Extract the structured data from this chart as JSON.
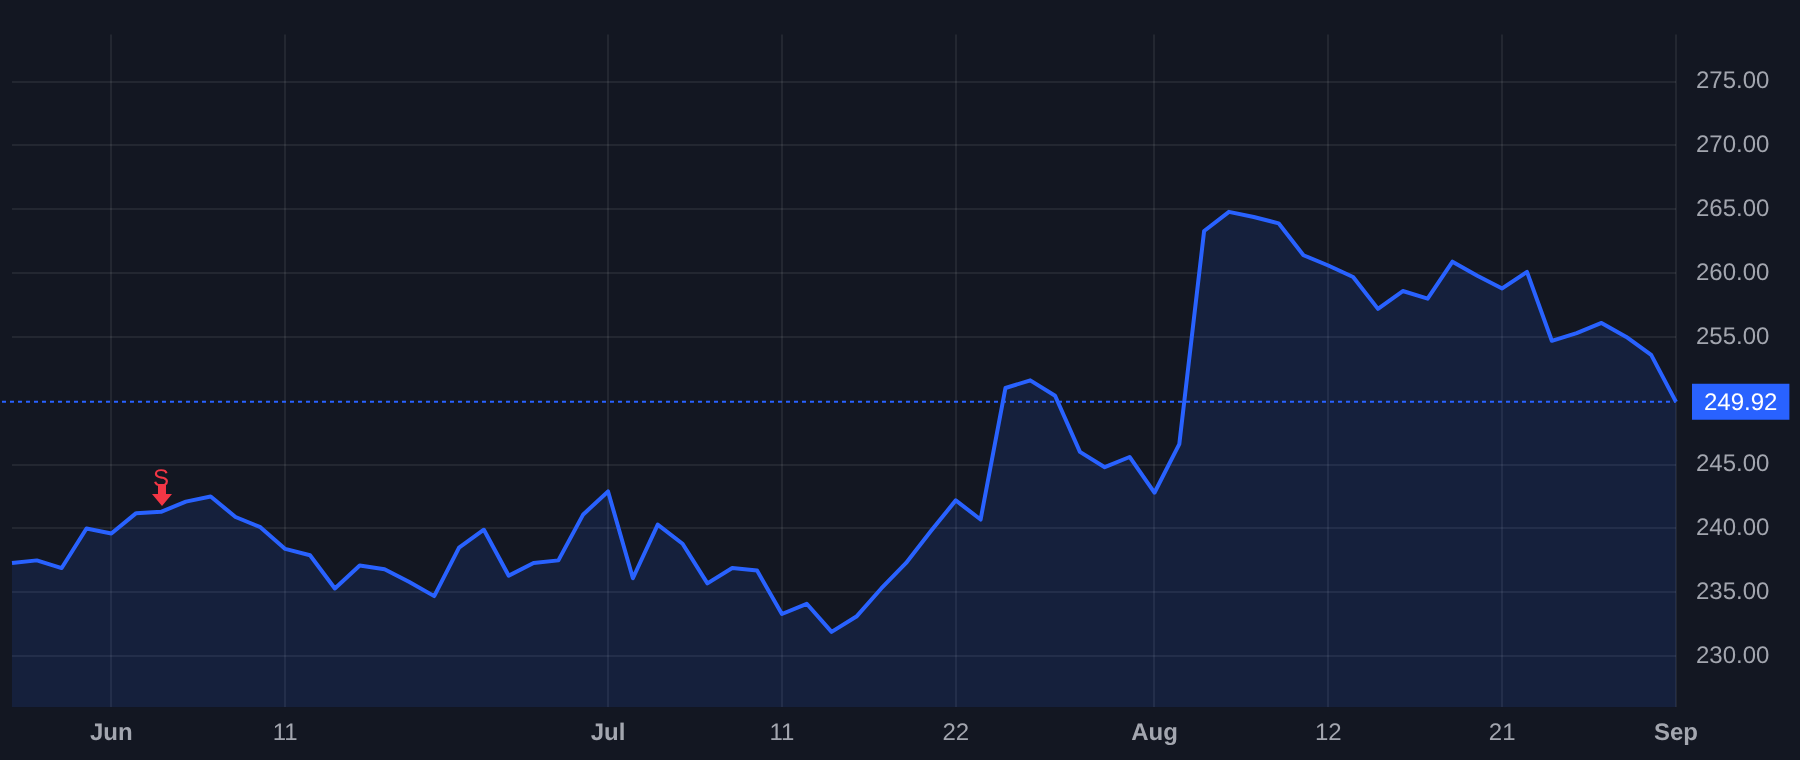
{
  "chart_data": {
    "type": "area",
    "categories": [
      null,
      null,
      null,
      null,
      "Jun",
      null,
      null,
      null,
      null,
      null,
      null,
      "11",
      null,
      null,
      null,
      null,
      null,
      null,
      null,
      null,
      null,
      null,
      null,
      null,
      "Jul",
      null,
      null,
      null,
      null,
      null,
      null,
      "11",
      null,
      null,
      null,
      null,
      null,
      null,
      "22",
      null,
      null,
      null,
      null,
      null,
      null,
      null,
      "Aug",
      null,
      null,
      null,
      null,
      null,
      null,
      "12",
      null,
      null,
      null,
      null,
      null,
      null,
      "21",
      null,
      null,
      null,
      null,
      null,
      null,
      "Sep"
    ],
    "series": [
      {
        "color": "#2962ff",
        "values": [
          237.3,
          237.5,
          236.9,
          240.0,
          239.6,
          241.2,
          241.3,
          242.1,
          242.5,
          240.9,
          240.1,
          238.4,
          237.9,
          235.3,
          237.1,
          236.8,
          235.8,
          234.7,
          238.5,
          239.9,
          236.3,
          237.3,
          237.5,
          241.1,
          242.9,
          236.1,
          240.3,
          238.8,
          235.7,
          236.9,
          236.7,
          233.3,
          234.1,
          231.9,
          233.1,
          235.3,
          237.3,
          239.8,
          242.2,
          240.7,
          251.0,
          251.6,
          250.4,
          246.0,
          244.8,
          245.6,
          242.8,
          246.6,
          263.3,
          264.8,
          264.4,
          263.9,
          261.4,
          260.6,
          259.7,
          257.2,
          258.6,
          258.0,
          260.9,
          259.8,
          258.8,
          260.1,
          254.7,
          255.3,
          256.1,
          255.0,
          253.6,
          249.92
        ]
      }
    ],
    "ylim": [
      226,
      278.7
    ],
    "yticks": [
      {
        "value": 230,
        "label": "230.00"
      },
      {
        "value": 235,
        "label": "235.00"
      },
      {
        "value": 240,
        "label": "240.00"
      },
      {
        "value": 245,
        "label": "245.00"
      },
      {
        "value": 255,
        "label": "255.00"
      },
      {
        "value": 260,
        "label": "260.00"
      },
      {
        "value": 265,
        "label": "265.00"
      },
      {
        "value": 270,
        "label": "270.00"
      },
      {
        "value": 275,
        "label": "275.00"
      }
    ],
    "ref_lines": [
      {
        "axis": "y",
        "value": 249.92,
        "label": "249.92",
        "color": "#2962ff",
        "line_style": "dotted"
      }
    ],
    "annotations": [
      {
        "text": "S",
        "y": 241.3
      }
    ],
    "grid": true,
    "legend": false,
    "marker": "none",
    "line_style": "solid"
  }
}
